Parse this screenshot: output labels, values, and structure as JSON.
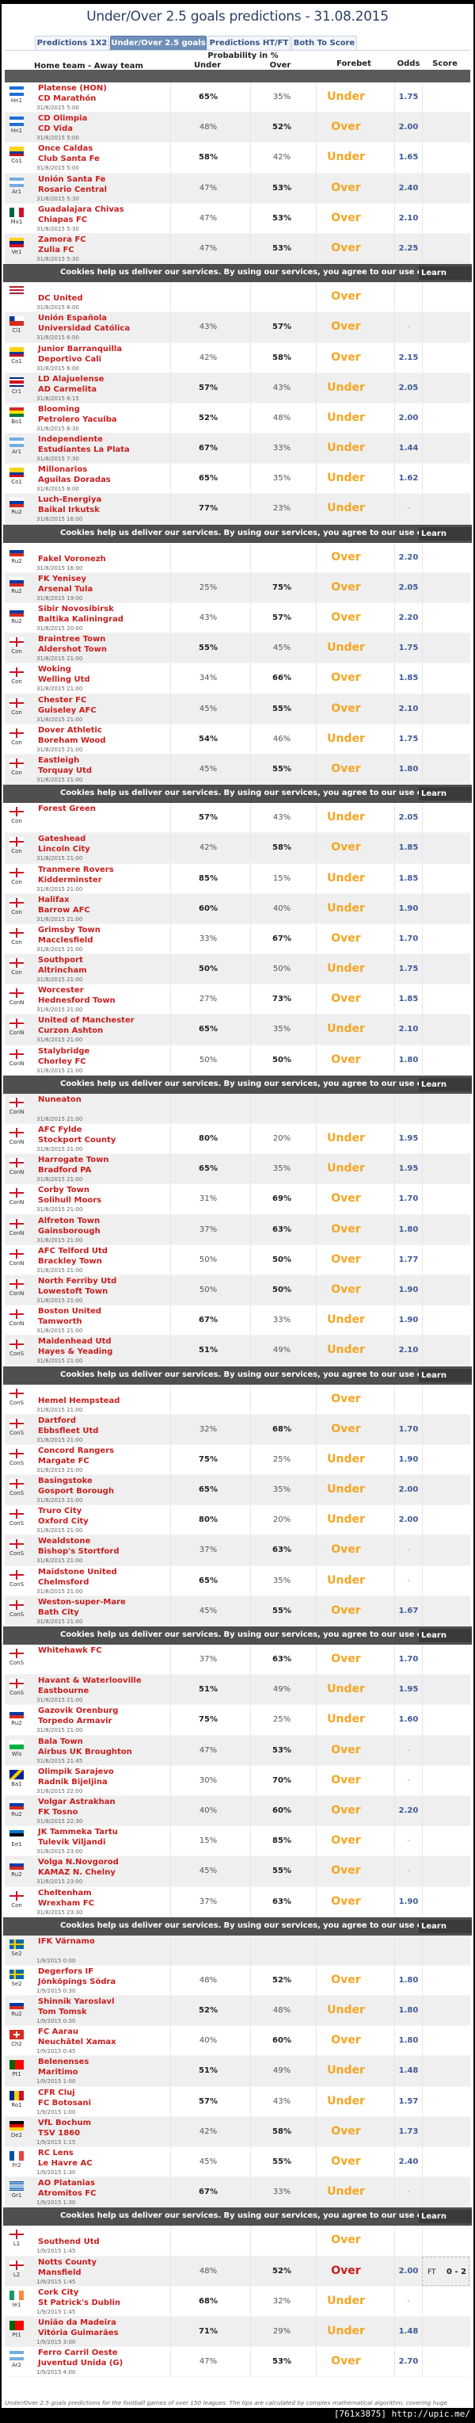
{
  "title": "Under/Over 2.5 goals predictions - 31.08.2015",
  "tabs": [
    {
      "label": "Predictions 1X2",
      "active": false
    },
    {
      "label": "Under/Over 2.5 goals",
      "active": true
    },
    {
      "label": "Predictions HT/FT",
      "active": false
    },
    {
      "label": "Both To Score",
      "active": false
    }
  ],
  "columns": {
    "teams": "Home team - Away team",
    "probability": "Probability in %",
    "under": "Under",
    "over": "Over",
    "forebet": "Forebet",
    "odds": "Odds",
    "score": "Score"
  },
  "colors": {
    "team": "#c81e1e",
    "forebet": "#f5a623",
    "forebet_lost": "#c81e1e",
    "odds": "#3d5a99",
    "active_tab": "#6f8fb8"
  },
  "cookie_banner": {
    "text": "Cookies help us deliver our services. By using our services, you agree to our use of cookies.",
    "button": "Learn more"
  },
  "matches": [
    {
      "flag": "honduras",
      "league": "Hn1",
      "home": "Platense (HON)",
      "away": "CD Marathón",
      "date": "31/8/2015 5:00",
      "under": "65%",
      "over": "35%",
      "forebet": "Under",
      "odds": "1.75"
    },
    {
      "flag": "honduras",
      "league": "Hn1",
      "home": "CD Olimpia",
      "away": "CD Vida",
      "date": "31/8/2015 5:00",
      "under": "48%",
      "over": "52%",
      "forebet": "Over",
      "odds": "2.00"
    },
    {
      "flag": "colombia",
      "league": "Co1",
      "home": "Once Caldas",
      "away": "Club Santa Fe",
      "date": "31/8/2015 5:00",
      "under": "58%",
      "over": "42%",
      "forebet": "Under",
      "odds": "1.65"
    },
    {
      "flag": "argentina",
      "league": "Ar1",
      "home": "Unión Santa Fe",
      "away": "Rosario Central",
      "date": "31/8/2015 5:30",
      "under": "47%",
      "over": "53%",
      "forebet": "Over",
      "odds": "2.40"
    },
    {
      "flag": "mexico",
      "league": "Mx1",
      "home": "Guadalajara Chivas",
      "away": "Chiapas FC",
      "date": "31/8/2015 5:30",
      "under": "47%",
      "over": "53%",
      "forebet": "Over",
      "odds": "2.10"
    },
    {
      "flag": "venezuela",
      "league": "Ve1",
      "home": "Zamora FC",
      "away": "Zulia FC",
      "date": "31/8/2015 5:30",
      "under": "47%",
      "over": "53%",
      "forebet": "Over",
      "odds": "2.25"
    },
    {
      "flag": "usa",
      "league": "",
      "home": "",
      "away": "DC United",
      "date": "31/8/2015 6:00",
      "under": "",
      "over": "",
      "forebet": "Over",
      "odds": ""
    },
    {
      "flag": "chile",
      "league": "Cl1",
      "home": "Unión Española",
      "away": "Universidad Católica",
      "date": "31/8/2015 6:00",
      "under": "43%",
      "over": "57%",
      "forebet": "Over",
      "odds": "-"
    },
    {
      "flag": "colombia",
      "league": "Co1",
      "home": "Junior Barranquilla",
      "away": "Deportivo Cali",
      "date": "31/8/2015 6:00",
      "under": "42%",
      "over": "58%",
      "forebet": "Over",
      "odds": "2.15"
    },
    {
      "flag": "costarica",
      "league": "Cr1",
      "home": "LD Alajuelense",
      "away": "AD Carmelita",
      "date": "31/8/2015 6:15",
      "under": "57%",
      "over": "43%",
      "forebet": "Under",
      "odds": "2.05"
    },
    {
      "flag": "bolivia",
      "league": "Bo1",
      "home": "Blooming",
      "away": "Petrolero Yacuiba",
      "date": "31/8/2015 6:30",
      "under": "52%",
      "over": "48%",
      "forebet": "Under",
      "odds": "2.00"
    },
    {
      "flag": "argentina",
      "league": "Ar1",
      "home": "Independiente",
      "away": "Estudiantes La Plata",
      "date": "31/8/2015 7:30",
      "under": "67%",
      "over": "33%",
      "forebet": "Under",
      "odds": "1.44"
    },
    {
      "flag": "colombia",
      "league": "Co1",
      "home": "Millonarios",
      "away": "Aguilas Doradas",
      "date": "31/8/2015 8:00",
      "under": "65%",
      "over": "35%",
      "forebet": "Under",
      "odds": "1.62"
    },
    {
      "flag": "russia",
      "league": "Ru2",
      "home": "Luch-Energiya",
      "away": "Baikal Irkutsk",
      "date": "31/8/2015 16:00",
      "under": "77%",
      "over": "23%",
      "forebet": "Under",
      "odds": "-"
    },
    {
      "flag": "russia",
      "league": "Ru2",
      "home": "",
      "away": "Fakel Voronezh",
      "date": "31/8/2015 16:00",
      "under": "",
      "over": "",
      "forebet": "Over",
      "odds": "2.20"
    },
    {
      "flag": "russia",
      "league": "Ru2",
      "home": "FK Yenisey",
      "away": "Arsenal Tula",
      "date": "31/8/2015 19:00",
      "under": "25%",
      "over": "75%",
      "forebet": "Over",
      "odds": "2.05"
    },
    {
      "flag": "russia",
      "league": "Ru2",
      "home": "Sibir Novosibirsk",
      "away": "Baltika Kaliningrad",
      "date": "31/8/2015 20:00",
      "under": "43%",
      "over": "57%",
      "forebet": "Over",
      "odds": "2.20"
    },
    {
      "flag": "england",
      "league": "Con",
      "home": "Braintree Town",
      "away": "Aldershot Town",
      "date": "31/8/2015 21:00",
      "under": "55%",
      "over": "45%",
      "forebet": "Under",
      "odds": "1.75"
    },
    {
      "flag": "england",
      "league": "Con",
      "home": "Woking",
      "away": "Welling Utd",
      "date": "31/8/2015 21:00",
      "under": "34%",
      "over": "66%",
      "forebet": "Over",
      "odds": "1.85"
    },
    {
      "flag": "england",
      "league": "Con",
      "home": "Chester FC",
      "away": "Guiseley AFC",
      "date": "31/8/2015 21:00",
      "under": "45%",
      "over": "55%",
      "forebet": "Over",
      "odds": "2.10"
    },
    {
      "flag": "england",
      "league": "Con",
      "home": "Dover Athletic",
      "away": "Boreham Wood",
      "date": "31/8/2015 21:00",
      "under": "54%",
      "over": "46%",
      "forebet": "Under",
      "odds": "1.75"
    },
    {
      "flag": "england",
      "league": "Con",
      "home": "Eastleigh",
      "away": "Torquay Utd",
      "date": "31/8/2015 21:00",
      "under": "45%",
      "over": "55%",
      "forebet": "Over",
      "odds": "1.80"
    },
    {
      "flag": "england",
      "league": "Con",
      "home": "Forest Green",
      "away": "",
      "date": "",
      "under": "57%",
      "over": "43%",
      "forebet": "Under",
      "odds": "2.05"
    },
    {
      "flag": "england",
      "league": "Con",
      "home": "Gateshead",
      "away": "Lincoln City",
      "date": "31/8/2015 21:00",
      "under": "42%",
      "over": "58%",
      "forebet": "Over",
      "odds": "1.85"
    },
    {
      "flag": "england",
      "league": "Con",
      "home": "Tranmere Rovers",
      "away": "Kidderminster",
      "date": "31/8/2015 21:00",
      "under": "85%",
      "over": "15%",
      "forebet": "Under",
      "odds": "1.85"
    },
    {
      "flag": "england",
      "league": "Con",
      "home": "Halifax",
      "away": "Barrow AFC",
      "date": "31/8/2015 21:00",
      "under": "60%",
      "over": "40%",
      "forebet": "Under",
      "odds": "1.90"
    },
    {
      "flag": "england",
      "league": "Con",
      "home": "Grimsby Town",
      "away": "Macclesfield",
      "date": "31/8/2015 21:00",
      "under": "33%",
      "over": "67%",
      "forebet": "Over",
      "odds": "1.70"
    },
    {
      "flag": "england",
      "league": "Con",
      "home": "Southport",
      "away": "Altrincham",
      "date": "31/8/2015 21:00",
      "under": "50%",
      "over": "50%",
      "forebet": "Under",
      "odds": "1.75"
    },
    {
      "flag": "england",
      "league": "ConN",
      "home": "Worcester",
      "away": "Hednesford Town",
      "date": "31/8/2015 21:00",
      "under": "27%",
      "over": "73%",
      "forebet": "Over",
      "odds": "1.85"
    },
    {
      "flag": "england",
      "league": "ConN",
      "home": "United of Manchester",
      "away": "Curzon Ashton",
      "date": "31/8/2015 21:00",
      "under": "65%",
      "over": "35%",
      "forebet": "Under",
      "odds": "2.10"
    },
    {
      "flag": "england",
      "league": "ConN",
      "home": "Stalybridge",
      "away": "Chorley FC",
      "date": "31/8/2015 21:00",
      "under": "50%",
      "over": "50%",
      "forebet": "Over",
      "odds": "1.80"
    },
    {
      "flag": "england",
      "league": "ConN",
      "home": "Nuneaton",
      "away": "",
      "date": "31/8/2015 21:00",
      "under": "",
      "over": "",
      "forebet": "",
      "odds": ""
    },
    {
      "flag": "england",
      "league": "ConN",
      "home": "AFC Fylde",
      "away": "Stockport County",
      "date": "31/8/2015 21:00",
      "under": "80%",
      "over": "20%",
      "forebet": "Under",
      "odds": "1.95"
    },
    {
      "flag": "england",
      "league": "ConN",
      "home": "Harrogate Town",
      "away": "Bradford PA",
      "date": "31/8/2015 21:00",
      "under": "65%",
      "over": "35%",
      "forebet": "Under",
      "odds": "1.95"
    },
    {
      "flag": "england",
      "league": "ConN",
      "home": "Corby Town",
      "away": "Solihull Moors",
      "date": "31/8/2015 21:00",
      "under": "31%",
      "over": "69%",
      "forebet": "Over",
      "odds": "1.70"
    },
    {
      "flag": "england",
      "league": "ConN",
      "home": "Alfreton Town",
      "away": "Gainsborough",
      "date": "31/8/2015 21:00",
      "under": "37%",
      "over": "63%",
      "forebet": "Over",
      "odds": "1.80"
    },
    {
      "flag": "england",
      "league": "ConN",
      "home": "AFC Telford Utd",
      "away": "Brackley Town",
      "date": "31/8/2015 21:00",
      "under": "50%",
      "over": "50%",
      "forebet": "Over",
      "odds": "1.77"
    },
    {
      "flag": "england",
      "league": "ConN",
      "home": "North Ferriby Utd",
      "away": "Lowestoft Town",
      "date": "31/8/2015 21:00",
      "under": "50%",
      "over": "50%",
      "forebet": "Over",
      "odds": "1.90"
    },
    {
      "flag": "england",
      "league": "ConN",
      "home": "Boston United",
      "away": "Tamworth",
      "date": "31/8/2015 21:00",
      "under": "67%",
      "over": "33%",
      "forebet": "Under",
      "odds": "1.90"
    },
    {
      "flag": "england",
      "league": "ConS",
      "home": "Maidenhead Utd",
      "away": "Hayes & Yeading",
      "date": "31/8/2015 21:00",
      "under": "51%",
      "over": "49%",
      "forebet": "Under",
      "odds": "2.10"
    },
    {
      "flag": "england",
      "league": "ConS",
      "home": "",
      "away": "Hemel Hempstead",
      "date": "31/8/2015 21:00",
      "under": "",
      "over": "",
      "forebet": "Over",
      "odds": ""
    },
    {
      "flag": "england",
      "league": "ConS",
      "home": "Dartford",
      "away": "Ebbsfleet Utd",
      "date": "31/8/2015 21:00",
      "under": "32%",
      "over": "68%",
      "forebet": "Over",
      "odds": "1.70"
    },
    {
      "flag": "england",
      "league": "ConS",
      "home": "Concord Rangers",
      "away": "Margate FC",
      "date": "31/8/2015 21:00",
      "under": "75%",
      "over": "25%",
      "forebet": "Under",
      "odds": "1.90"
    },
    {
      "flag": "england",
      "league": "ConS",
      "home": "Basingstoke",
      "away": "Gosport Borough",
      "date": "31/8/2015 21:00",
      "under": "65%",
      "over": "35%",
      "forebet": "Under",
      "odds": "2.00"
    },
    {
      "flag": "england",
      "league": "ConS",
      "home": "Truro City",
      "away": "Oxford City",
      "date": "31/8/2015 21:00",
      "under": "80%",
      "over": "20%",
      "forebet": "Under",
      "odds": "2.00"
    },
    {
      "flag": "england",
      "league": "ConS",
      "home": "Wealdstone",
      "away": "Bishop's Stortford",
      "date": "31/8/2015 21:00",
      "under": "37%",
      "over": "63%",
      "forebet": "Over",
      "odds": "-"
    },
    {
      "flag": "england",
      "league": "ConS",
      "home": "Maidstone United",
      "away": "Chelmsford",
      "date": "31/8/2015 21:00",
      "under": "65%",
      "over": "35%",
      "forebet": "Under",
      "odds": "-"
    },
    {
      "flag": "england",
      "league": "ConS",
      "home": "Weston-super-Mare",
      "away": "Bath City",
      "date": "31/8/2015 21:00",
      "under": "45%",
      "over": "55%",
      "forebet": "Over",
      "odds": "1.67"
    },
    {
      "flag": "england",
      "league": "ConS",
      "home": "Whitehawk FC",
      "away": "",
      "date": "",
      "under": "37%",
      "over": "63%",
      "forebet": "Over",
      "odds": "1.70"
    },
    {
      "flag": "england",
      "league": "ConS",
      "home": "Havant & Waterlooville",
      "away": "Eastbourne",
      "date": "31/8/2015 21:00",
      "under": "51%",
      "over": "49%",
      "forebet": "Under",
      "odds": "1.95"
    },
    {
      "flag": "russia",
      "league": "Ru2",
      "home": "Gazovik Orenburg",
      "away": "Torpedo Armavir",
      "date": "31/8/2015 21:00",
      "under": "75%",
      "over": "25%",
      "forebet": "Under",
      "odds": "1.60"
    },
    {
      "flag": "wales",
      "league": "Wls",
      "home": "Bala Town",
      "away": "Airbus UK Broughton",
      "date": "31/8/2015 21:45",
      "under": "47%",
      "over": "53%",
      "forebet": "Over",
      "odds": "-"
    },
    {
      "flag": "bosnia",
      "league": "Ba1",
      "home": "Olimpik Sarajevo",
      "away": "Radnik Bijeljina",
      "date": "31/8/2015 22:00",
      "under": "30%",
      "over": "70%",
      "forebet": "Over",
      "odds": "-"
    },
    {
      "flag": "russia",
      "league": "Ru2",
      "home": "Volgar Astrakhan",
      "away": "FK Tosno",
      "date": "31/8/2015 22:30",
      "under": "40%",
      "over": "60%",
      "forebet": "Over",
      "odds": "2.20"
    },
    {
      "flag": "estonia",
      "league": "Ee1",
      "home": "JK Tammeka Tartu",
      "away": "Tulevik Viljandi",
      "date": "31/8/2015 23:00",
      "under": "15%",
      "over": "85%",
      "forebet": "Over",
      "odds": "-"
    },
    {
      "flag": "russia",
      "league": "Ru2",
      "home": "Volga N.Novgorod",
      "away": "KAMAZ N. Chelny",
      "date": "31/8/2015 23:00",
      "under": "45%",
      "over": "55%",
      "forebet": "Over",
      "odds": "-"
    },
    {
      "flag": "england",
      "league": "Con",
      "home": "Cheltenham",
      "away": "Wrexham FC",
      "date": "31/8/2015 23:30",
      "under": "37%",
      "over": "63%",
      "forebet": "Over",
      "odds": "1.90"
    },
    {
      "flag": "sweden",
      "league": "Se2",
      "home": "IFK Värnamo",
      "away": "",
      "date": "1/9/2015 0:00",
      "under": "",
      "over": "",
      "forebet": "",
      "odds": ""
    },
    {
      "flag": "sweden",
      "league": "Se2",
      "home": "Degerfors IF",
      "away": "Jönköpings Södra",
      "date": "1/9/2015 0:30",
      "under": "48%",
      "over": "52%",
      "forebet": "Over",
      "odds": "1.80"
    },
    {
      "flag": "russia",
      "league": "Ru2",
      "home": "Shinnik Yaroslavl",
      "away": "Tom Tomsk",
      "date": "1/9/2015 0:30",
      "under": "52%",
      "over": "48%",
      "forebet": "Under",
      "odds": "1.80"
    },
    {
      "flag": "switzerland",
      "league": "Ch2",
      "home": "FC Aarau",
      "away": "Neuchâtel Xamax",
      "date": "1/9/2015 0:45",
      "under": "40%",
      "over": "60%",
      "forebet": "Over",
      "odds": "1.80"
    },
    {
      "flag": "portugal",
      "league": "Pt1",
      "home": "Belenenses",
      "away": "Maritimo",
      "date": "1/9/2015 1:00",
      "under": "51%",
      "over": "49%",
      "forebet": "Under",
      "odds": "1.48"
    },
    {
      "flag": "romania",
      "league": "Ro1",
      "home": "CFR Cluj",
      "away": "FC Botosani",
      "date": "1/9/2015 1:00",
      "under": "57%",
      "over": "43%",
      "forebet": "Under",
      "odds": "1.57"
    },
    {
      "flag": "germany",
      "league": "De2",
      "home": "VfL Bochum",
      "away": "TSV 1860",
      "date": "1/9/2015 1:15",
      "under": "42%",
      "over": "58%",
      "forebet": "Over",
      "odds": "1.73"
    },
    {
      "flag": "france",
      "league": "Fr2",
      "home": "RC Lens",
      "away": "Le Havre AC",
      "date": "1/9/2015 1:30",
      "under": "45%",
      "over": "55%",
      "forebet": "Over",
      "odds": "2.40"
    },
    {
      "flag": "greece",
      "league": "Gr1",
      "home": "AO Platanias",
      "away": "Atromitos FC",
      "date": "1/9/2015 1:30",
      "under": "67%",
      "over": "33%",
      "forebet": "Under",
      "odds": "-"
    },
    {
      "flag": "england",
      "league": "L1",
      "home": "",
      "away": "Southend Utd",
      "date": "1/9/2015 1:45",
      "under": "",
      "over": "",
      "forebet": "Over",
      "odds": ""
    },
    {
      "flag": "england",
      "league": "L2",
      "home": "Notts County",
      "away": "Mansfield",
      "date": "1/9/2015 1:45",
      "under": "48%",
      "over": "52%",
      "forebet": "Over",
      "forebet_lost": true,
      "odds": "2.00",
      "score_status": "FT",
      "score": "0 - 2"
    },
    {
      "flag": "ireland",
      "league": "Ie1",
      "home": "Cork City",
      "away": "St Patrick's Dublin",
      "date": "1/9/2015 1:45",
      "under": "68%",
      "over": "32%",
      "forebet": "Under",
      "odds": "-"
    },
    {
      "flag": "portugal",
      "league": "Pt1",
      "home": "União da Madeira",
      "away": "Vitória Guimarães",
      "date": "1/9/2015 3:00",
      "under": "71%",
      "over": "29%",
      "forebet": "Under",
      "odds": "1.48"
    },
    {
      "flag": "argentina",
      "league": "Ar2",
      "home": "Ferro Carril Oeste",
      "away": "Juventud Unida (G)",
      "date": "1/9/2015 4:00",
      "under": "47%",
      "over": "53%",
      "forebet": "Over",
      "odds": "2.70"
    }
  ],
  "footer": "Under/Over 2.5 goals predictions for the football games of over 150 leagues. The tips are calculated by complex mathematical algorithm, covering huge",
  "watermark": "[761x3875] http://upic.me/"
}
